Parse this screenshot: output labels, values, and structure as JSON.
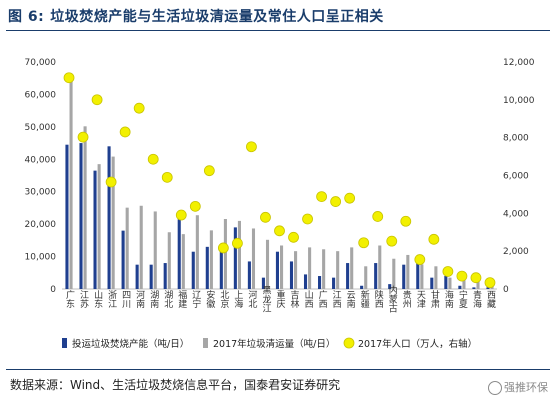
{
  "figure": {
    "label": "图 6:",
    "title": "垃圾焚烧产能与生活垃圾清运量及常住人口呈正相关",
    "source": "数据来源：Wind、生活垃圾焚烧信息平台，国泰君安证券研究",
    "watermark": "强推环保"
  },
  "chart_data": {
    "type": "bar",
    "categories": [
      "广东",
      "江苏",
      "山东",
      "浙江",
      "四川",
      "河南",
      "湖南",
      "湖北",
      "福建",
      "辽宁",
      "安徽",
      "北京",
      "上海",
      "河北",
      "黑龙江",
      "重庆",
      "吉林",
      "山西",
      "广西",
      "江西",
      "云南",
      "新疆",
      "陕西",
      "内蒙古",
      "贵州",
      "天津",
      "甘肃",
      "海南",
      "宁夏",
      "青海",
      "西藏"
    ],
    "series": [
      {
        "name": "投运垃圾焚烧产能（吨/日）",
        "axis": "left",
        "color": "#1f3f8f",
        "values": [
          44500,
          45000,
          36500,
          44000,
          18000,
          7500,
          7500,
          8000,
          21500,
          11500,
          13000,
          13500,
          19000,
          8500,
          3500,
          11500,
          8500,
          4500,
          4000,
          3500,
          8000,
          1000,
          8000,
          1500,
          7500,
          8500,
          3500,
          4000,
          1000,
          500,
          500
        ]
      },
      {
        "name": "2017年垃圾清运量（吨/日）",
        "axis": "right",
        "color": "#a6a6a6",
        "values": [
          11200,
          8600,
          6600,
          7000,
          4300,
          4400,
          4100,
          3000,
          2900,
          3900,
          3100,
          3700,
          3600,
          3200,
          2600,
          2300,
          2000,
          2200,
          2100,
          2000,
          2200,
          1200,
          2300,
          1600,
          1800,
          1300,
          1200,
          600,
          500,
          400,
          300
        ]
      },
      {
        "name": "2017年人口（万人，右轴）",
        "axis": "right",
        "type": "scatter",
        "color": "#f2f000",
        "values": [
          11169,
          8029,
          10006,
          5657,
          8302,
          9559,
          6860,
          5902,
          3911,
          4369,
          6255,
          2171,
          2418,
          7520,
          3789,
          3075,
          2733,
          3702,
          4885,
          4622,
          4801,
          2445,
          3835,
          2529,
          3580,
          1557,
          2626,
          926,
          682,
          598,
          337
        ]
      }
    ],
    "y_left": {
      "min": 0,
      "max": 70000,
      "ticks": [
        "0",
        "10,000",
        "20,000",
        "30,000",
        "40,000",
        "50,000",
        "60,000",
        "70,000"
      ]
    },
    "y_right": {
      "min": 0,
      "max": 12000,
      "ticks": [
        "0",
        "2,000",
        "4,000",
        "6,000",
        "8,000",
        "10,000",
        "12,000"
      ]
    },
    "grid": false,
    "legend_position": "bottom"
  }
}
